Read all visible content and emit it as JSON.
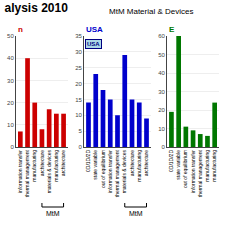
{
  "title": "alysis 2010",
  "subtitle": "MtM Material & Devices",
  "chart_data": [
    {
      "type": "bar",
      "title": "n",
      "color": "#cc0000",
      "categories": [
        "information transfer",
        "thermal management",
        "manufacturing",
        "architecture",
        "materials & devices",
        "manufacturing",
        "architecture"
      ],
      "values": [
        7,
        40,
        20,
        8,
        17,
        15,
        15
      ],
      "ylim": [
        0,
        50
      ],
      "yticks": [
        0,
        10,
        20,
        30,
        40,
        50
      ],
      "grid": true,
      "annotations": [
        {
          "text": "MtM",
          "from": 3,
          "to": 6
        }
      ]
    },
    {
      "type": "bar",
      "title": "USA",
      "color": "#0000cc",
      "categories": [
        "0D/1D/2D",
        "state variable",
        "out of equilibrium",
        "information transfer",
        "thermal management",
        "materials & devices",
        "architecture",
        "manufacturing",
        "architecture"
      ],
      "values": [
        14,
        23,
        18,
        15,
        10,
        29,
        15,
        14,
        9
      ],
      "ylim": [
        0,
        35
      ],
      "yticks": [
        0,
        5,
        10,
        15,
        20,
        25,
        30,
        35
      ],
      "grid": true,
      "annotations": [
        {
          "text": "USA"
        },
        {
          "text": "MtM",
          "from": 5,
          "to": 8
        }
      ]
    },
    {
      "type": "bar",
      "title": "E",
      "color": "#007700",
      "categories": [
        "0D/1D/2D",
        "state variable",
        "out of equilibrium",
        "information transfer",
        "thermal management",
        "manufacturing",
        "manufacturing"
      ],
      "values": [
        19,
        60,
        11,
        9,
        7,
        6,
        24
      ],
      "ylim": [
        0,
        60
      ],
      "yticks": [
        0,
        10,
        20,
        30,
        40,
        50,
        60
      ],
      "grid": true
    }
  ]
}
